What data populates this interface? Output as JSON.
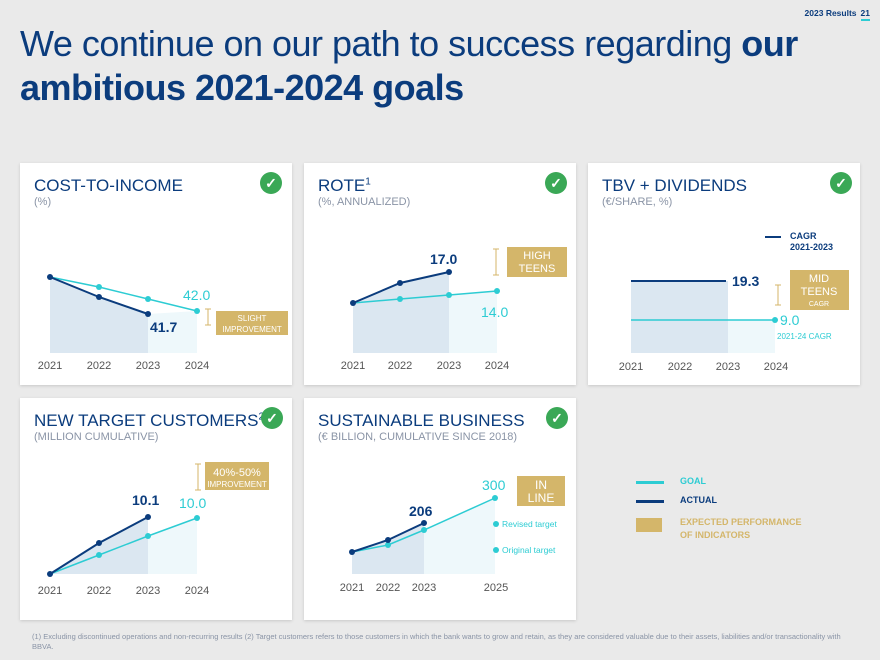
{
  "header": {
    "results_label": "2023 Results",
    "page_number": "21",
    "title_normal": "We continue on our path to success regarding ",
    "title_bold_1": "our",
    "title_bold_2": "ambitious 2021-2024 goals"
  },
  "colors": {
    "goal": "#2dccd3",
    "actual": "#0b3c7d",
    "expected": "#d4b66a",
    "check": "#3aa856",
    "text_gray": "#8a94a6"
  },
  "cards": {
    "cost": {
      "title": "COST-TO-INCOME",
      "subtitle": "(%)",
      "check_icon": "check-circle-icon",
      "actual_label": "41.7",
      "goal_label": "42.0",
      "badge_line1": "SLIGHT",
      "badge_line2": "IMPROVEMENT",
      "years": [
        "2021",
        "2022",
        "2023",
        "2024"
      ]
    },
    "rote": {
      "title": "ROTE",
      "title_sup": "1",
      "subtitle": "(%, ANNUALIZED)",
      "check_icon": "check-circle-icon",
      "actual_label": "17.0",
      "goal_label": "14.0",
      "badge_line1": "HIGH",
      "badge_line2": "TEENS",
      "years": [
        "2021",
        "2022",
        "2023",
        "2024"
      ]
    },
    "tbv": {
      "title": "TBV + DIVIDENDS",
      "subtitle": "(€/SHARE, %)",
      "check_icon": "check-circle-icon",
      "cagr_line1": "CAGR",
      "cagr_line2": "2021-2023",
      "actual_label": "19.3",
      "goal_label": "9.0",
      "goal_sub": "2021-24 CAGR",
      "badge_line1": "MID",
      "badge_line2": "TEENS",
      "badge_line3": "CAGR",
      "years": [
        "2021",
        "2022",
        "2023",
        "2024"
      ]
    },
    "customers": {
      "title": "NEW TARGET CUSTOMERS",
      "title_sup": "2",
      "subtitle": "(MILLION CUMULATIVE)",
      "check_icon": "check-circle-icon",
      "actual_label": "10.1",
      "goal_label": "10.0",
      "badge_line1": "40%-50%",
      "badge_line2": "IMPROVEMENT",
      "years": [
        "2021",
        "2022",
        "2023",
        "2024"
      ]
    },
    "sustainable": {
      "title": "SUSTAINABLE BUSINESS",
      "subtitle": "(€ BILLION, CUMULATIVE SINCE 2018)",
      "check_icon": "check-circle-icon",
      "actual_label": "206",
      "goal_label": "300",
      "badge_line1": "IN",
      "badge_line2": "LINE",
      "revised_label": "Revised target",
      "original_label": "Original target",
      "years": [
        "2021",
        "2022",
        "2023",
        "2025"
      ]
    }
  },
  "legend": {
    "goal": "GOAL",
    "actual": "ACTUAL",
    "expected_line1": "EXPECTED PERFORMANCE",
    "expected_line2": "OF INDICATORS"
  },
  "footnote": "(1) Excluding discontinued operations and non-recurring results (2) Target customers refers to those customers in which the bank wants to grow and retain, as they are considered valuable due to their assets, liabilities and/or transactionality with BBVA."
}
